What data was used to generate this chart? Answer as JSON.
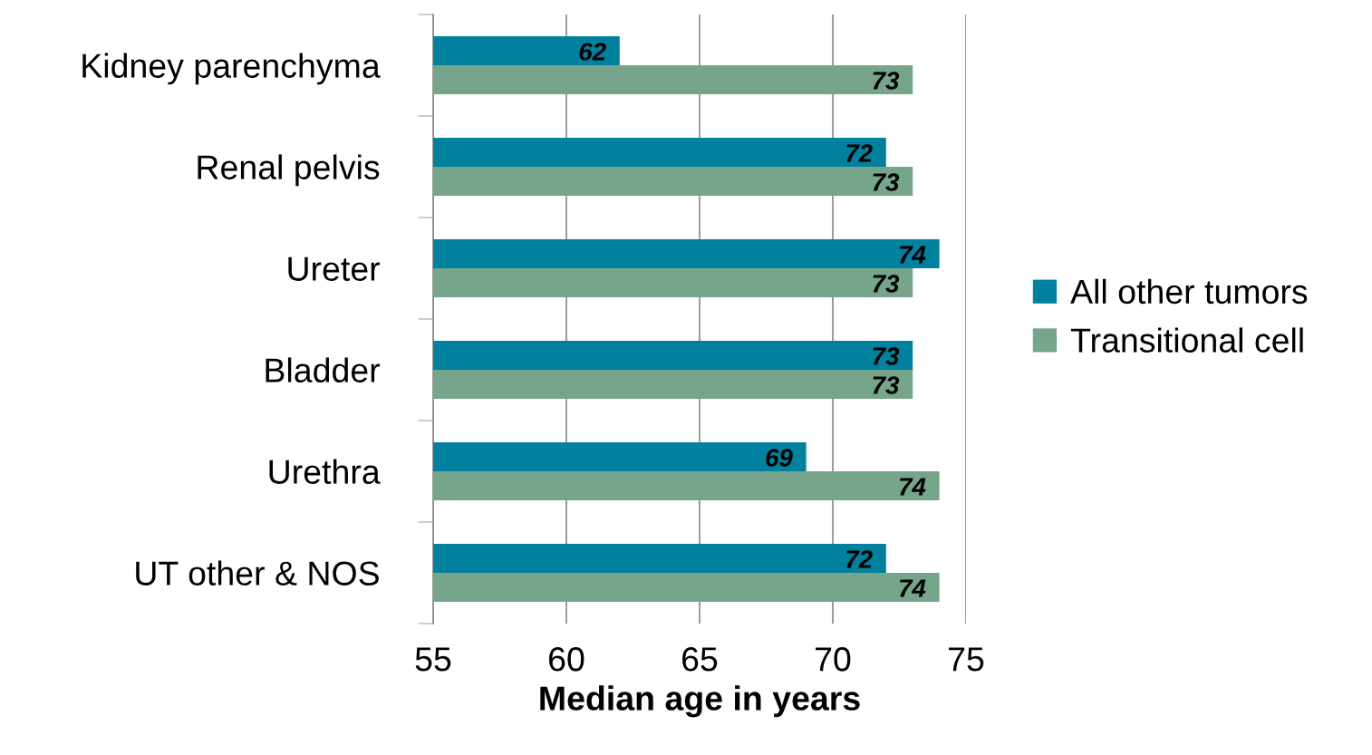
{
  "chart_data": {
    "type": "bar",
    "orientation": "horizontal",
    "xlabel": "Median age in years",
    "categories": [
      "Kidney parenchyma",
      "Renal pelvis",
      "Ureter",
      "Bladder",
      "Urethra",
      "UT other & NOS"
    ],
    "series": [
      {
        "name": "All other tumors",
        "color": "#00819e",
        "values": [
          62,
          72,
          74,
          73,
          69,
          72
        ]
      },
      {
        "name": "Transitional cell",
        "color": "#76a58c",
        "values": [
          73,
          73,
          73,
          73,
          74,
          74
        ]
      }
    ],
    "xlim": [
      55,
      75
    ],
    "xticks": [
      55,
      60,
      65,
      70,
      75
    ],
    "grid": "x",
    "legend": "right",
    "data_labels": true
  }
}
